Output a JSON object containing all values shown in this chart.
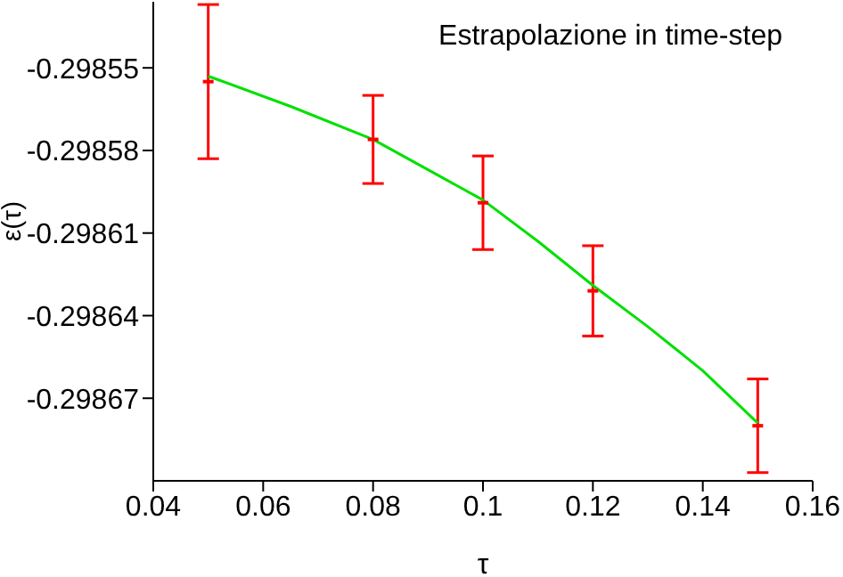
{
  "chart_data": {
    "type": "scatter",
    "title": "Estrapolazione in time-step",
    "xlabel": "τ",
    "ylabel": "ε(τ)",
    "xlim": [
      0.04,
      0.16
    ],
    "xticks": [
      0.04,
      0.06,
      0.08,
      0.1,
      0.12,
      0.14,
      0.16
    ],
    "ylim": [
      -0.2987,
      -0.298526
    ],
    "yticks": [
      -0.29855,
      -0.29858,
      -0.29861,
      -0.29864,
      -0.29867
    ],
    "series": [
      {
        "color": "#ff0000",
        "x": [
          0.05,
          0.08,
          0.1,
          0.12,
          0.15
        ],
        "values": [
          -0.298555,
          -0.298576,
          -0.298599,
          -0.298631,
          -0.29868
        ],
        "errors": [
          2.8e-05,
          1.6e-05,
          1.7e-05,
          1.64e-05,
          1.7e-05
        ]
      },
      {
        "type": "line",
        "color": "#00e000",
        "x": [
          0.05,
          0.065,
          0.08,
          0.09,
          0.1,
          0.11,
          0.12,
          0.13,
          0.14,
          0.15
        ],
        "values": [
          -0.298553,
          -0.298564,
          -0.298576,
          -0.298587,
          -0.298598,
          -0.298613,
          -0.298629,
          -0.298644,
          -0.29866,
          -0.298679
        ]
      }
    ]
  }
}
